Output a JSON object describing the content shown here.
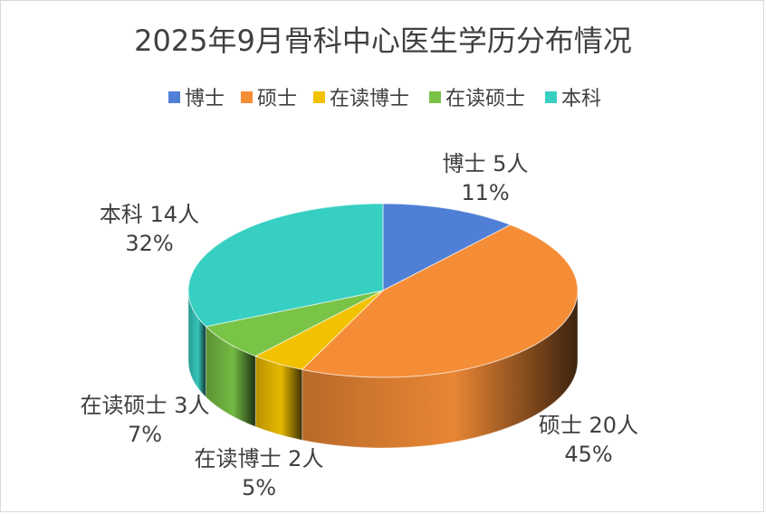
{
  "chart_data": {
    "type": "pie",
    "variant": "3d",
    "title": "2025年9月骨科中心医生学历分布情况",
    "unit": "人",
    "legend_position": "top",
    "categories": [
      "博士",
      "硕士",
      "在读博士",
      "在读硕士",
      "本科"
    ],
    "values": [
      5,
      20,
      2,
      3,
      14
    ],
    "percent_labels": [
      "11%",
      "45%",
      "5%",
      "7%",
      "32%"
    ],
    "value_labels": [
      "博士 5人",
      "硕士 20人",
      "在读博士 2人",
      "在读硕士 3人",
      "本科 14人"
    ],
    "colors": [
      "#4f7fd6",
      "#f58d37",
      "#f2c200",
      "#79c447",
      "#37cfc2"
    ]
  }
}
